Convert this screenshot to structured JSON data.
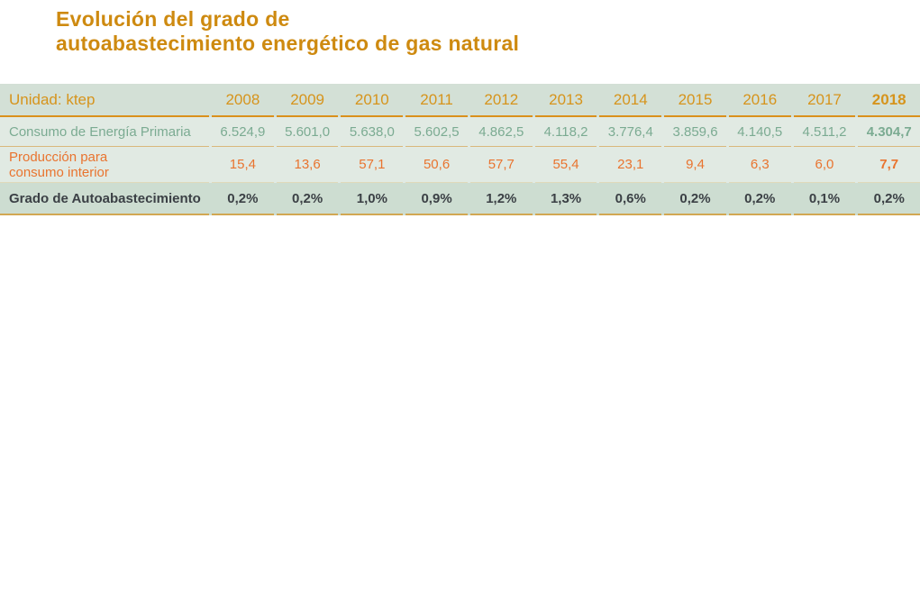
{
  "title_lines": [
    "Evolución del grado de",
    "autoabastecimiento energético de gas natural"
  ],
  "colors": {
    "title_orange": "#ce8a10",
    "header_text_orange": "#d6941c",
    "header_underline": "#da901c",
    "header_bg": "#d3e0d6",
    "light_row_bg": "#e1eae3",
    "footer_row_bg": "#cdddd1",
    "consumo_text_green": "#7bab92",
    "produccion_text_orange": "#e9742f",
    "grado_text_dark": "#3b4045",
    "thin_border_tan": "#d9b87c",
    "bottom_border_tan": "#d2a753"
  },
  "table": {
    "unit_label": "Unidad: ktep",
    "years": [
      "2008",
      "2009",
      "2010",
      "2011",
      "2012",
      "2013",
      "2014",
      "2015",
      "2016",
      "2017",
      "2018"
    ],
    "rows": [
      {
        "label": "Consumo de Energía Primaria",
        "values": [
          "6.524,9",
          "5.601,0",
          "5.638,0",
          "5.602,5",
          "4.862,5",
          "4.118,2",
          "3.776,4",
          "3.859,6",
          "4.140,5",
          "4.511,2",
          "4.304,7"
        ]
      },
      {
        "label": "Producción para consumo interior",
        "values": [
          "15,4",
          "13,6",
          "57,1",
          "50,6",
          "57,7",
          "55,4",
          "23,1",
          "9,4",
          "6,3",
          "6,0",
          "7,7"
        ]
      },
      {
        "label": "Grado de Autoabastecimiento",
        "values": [
          "0,2%",
          "0,2%",
          "1,0%",
          "0,9%",
          "1,2%",
          "1,3%",
          "0,6%",
          "0,2%",
          "0,2%",
          "0,1%",
          "0,2%"
        ]
      }
    ]
  },
  "chart_data": {
    "type": "table",
    "title": "Evolución del grado de autoabastecimiento energético de gas natural",
    "unit": "ktep",
    "categories": [
      "2008",
      "2009",
      "2010",
      "2011",
      "2012",
      "2013",
      "2014",
      "2015",
      "2016",
      "2017",
      "2018"
    ],
    "series": [
      {
        "name": "Consumo de Energía Primaria",
        "values": [
          6524.9,
          5601.0,
          5638.0,
          5602.5,
          4862.5,
          4118.2,
          3776.4,
          3859.6,
          4140.5,
          4511.2,
          4304.7
        ]
      },
      {
        "name": "Producción para consumo interior",
        "values": [
          15.4,
          13.6,
          57.1,
          50.6,
          57.7,
          55.4,
          23.1,
          9.4,
          6.3,
          6.0,
          7.7
        ]
      },
      {
        "name": "Grado de Autoabastecimiento (%)",
        "values": [
          0.2,
          0.2,
          1.0,
          0.9,
          1.2,
          1.3,
          0.6,
          0.2,
          0.2,
          0.1,
          0.2
        ]
      }
    ]
  }
}
